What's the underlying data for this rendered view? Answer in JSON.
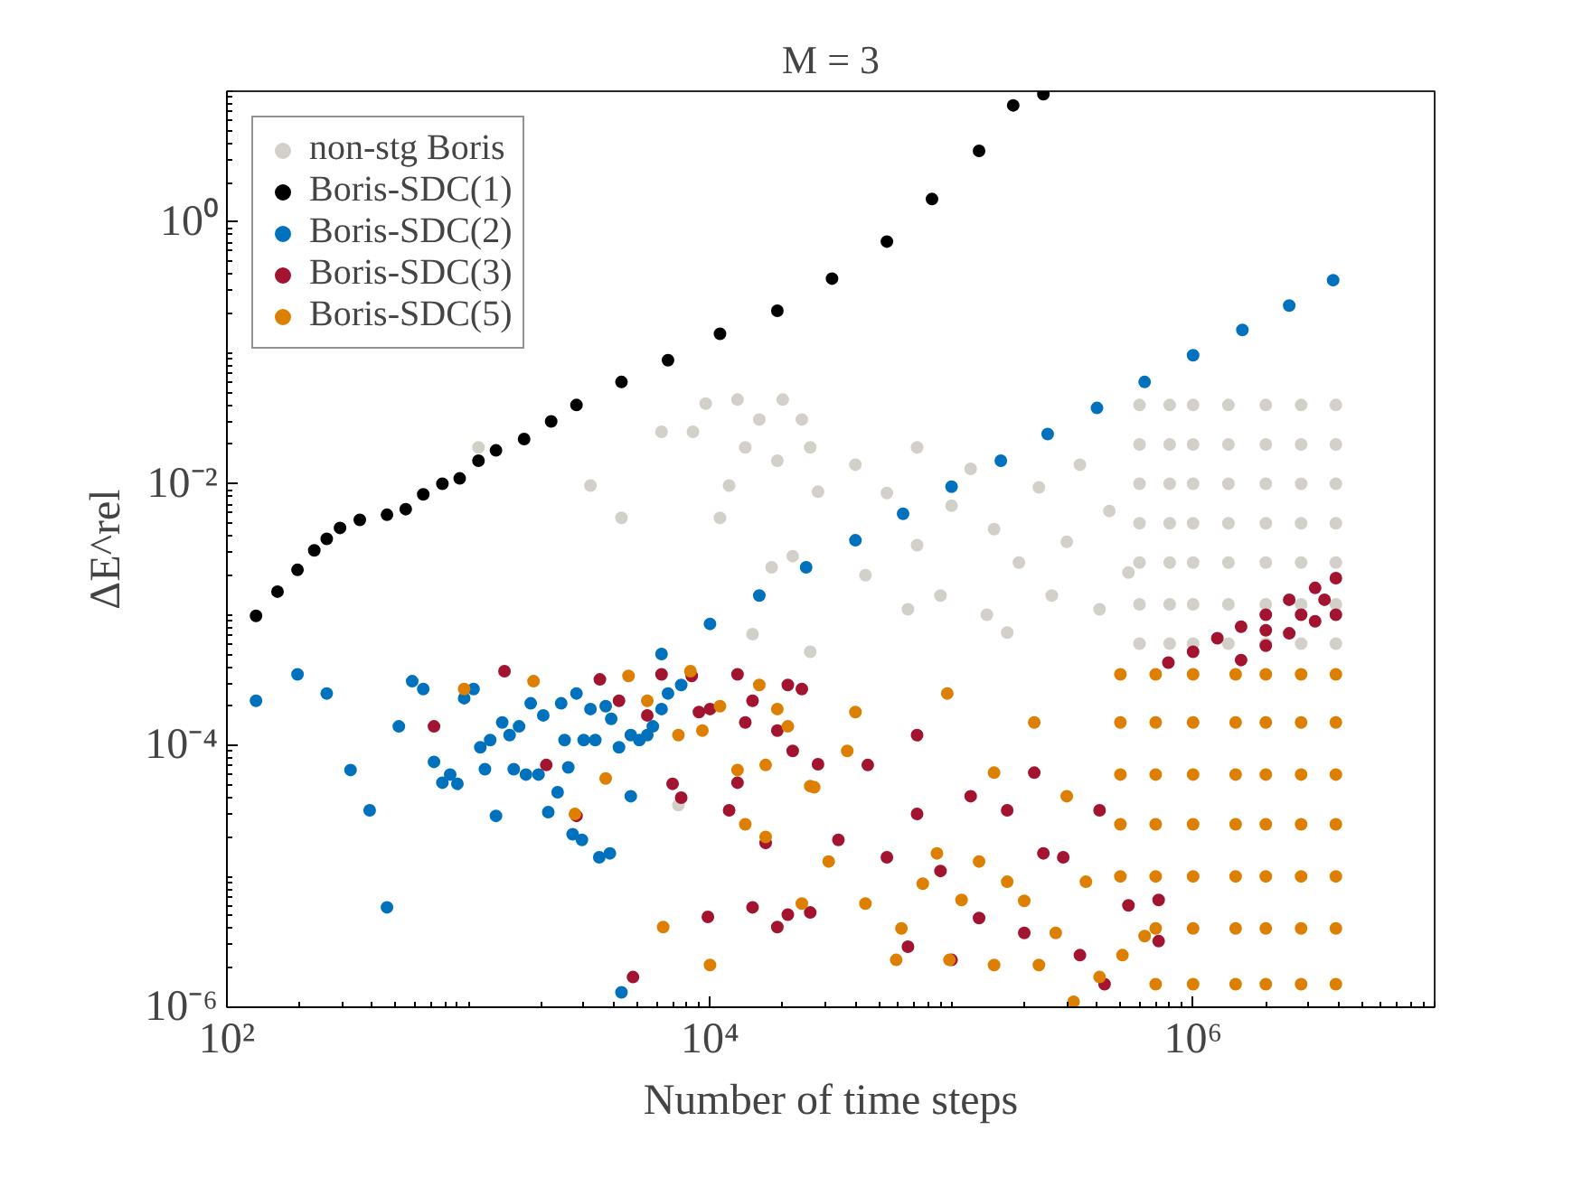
{
  "chart_data": {
    "type": "scatter",
    "title": "M = 3",
    "xlabel": "Number of time steps",
    "ylabel": "ΔE^rel",
    "log": "xy",
    "grid": false,
    "legend": "top left",
    "marker": "circle",
    "xlim": [
      100,
      10000000
    ],
    "xticks": [
      {
        "value": 100,
        "label": "10²"
      },
      {
        "value": 10000,
        "label": "10⁴"
      },
      {
        "value": 1000000,
        "label": "10⁶"
      }
    ],
    "ylim": [
      1e-06,
      10
    ],
    "yticks": [
      {
        "value": 1e-06,
        "label": "10⁻⁶"
      },
      {
        "value": 0.0001,
        "label": "10⁻⁴"
      },
      {
        "value": 0.01,
        "label": "10⁻²"
      },
      {
        "value": 1,
        "label": "10⁰"
      }
    ],
    "series": [
      {
        "name": "non-stg Boris",
        "color": "#d3cfc9",
        "x": [
          1100,
          3200,
          4300,
          6300,
          8500,
          9600,
          11000,
          12000,
          13000,
          14000,
          16000,
          18000,
          19000,
          20000,
          22000,
          24000,
          15000,
          26000,
          7400,
          26000,
          28000,
          40000,
          44000,
          54000,
          66000,
          72000,
          72000,
          90000,
          100000,
          120000,
          140000,
          150000,
          170000,
          190000,
          230000,
          260000,
          300000,
          340000,
          410000,
          450000,
          540000,
          600000,
          600000,
          600000,
          600000,
          600000,
          600000,
          600000,
          800000,
          800000,
          800000,
          800000,
          800000,
          800000,
          800000,
          1000000,
          1000000,
          1000000,
          1000000,
          1000000,
          1000000,
          1000000,
          1400000,
          1400000,
          1400000,
          1400000,
          1400000,
          1400000,
          1400000,
          2000000,
          2000000,
          2000000,
          2000000,
          2000000,
          2000000,
          2000000,
          2800000,
          2800000,
          2800000,
          2800000,
          2800000,
          2800000,
          2800000,
          3900000,
          3900000,
          3900000,
          3900000,
          3900000,
          3900000,
          3900000
        ],
        "values": [
          0.019,
          0.0097,
          0.0055,
          0.025,
          0.025,
          0.041,
          0.0055,
          0.0097,
          0.044,
          0.019,
          0.031,
          0.0023,
          0.015,
          0.044,
          0.0028,
          0.031,
          0.00071,
          0.00052,
          3.5e-05,
          0.019,
          0.0087,
          0.014,
          0.002,
          0.0085,
          0.0011,
          0.019,
          0.0034,
          0.0014,
          0.0068,
          0.013,
          0.001,
          0.0045,
          0.00073,
          0.0025,
          0.0094,
          0.0014,
          0.0036,
          0.014,
          0.0011,
          0.0062,
          0.0021,
          0.04,
          0.02,
          0.01,
          0.005,
          0.0025,
          0.0012,
          0.0006,
          0.04,
          0.02,
          0.01,
          0.005,
          0.0025,
          0.0012,
          0.0006,
          0.04,
          0.02,
          0.01,
          0.005,
          0.0025,
          0.0012,
          0.0006,
          0.04,
          0.02,
          0.01,
          0.005,
          0.0025,
          0.0012,
          0.0006,
          0.04,
          0.02,
          0.01,
          0.005,
          0.0025,
          0.0012,
          0.0006,
          0.04,
          0.02,
          0.01,
          0.005,
          0.0025,
          0.0012,
          0.0006,
          0.04,
          0.02,
          0.01,
          0.005,
          0.0025,
          0.0012,
          0.0006
        ]
      },
      {
        "name": "Boris-SDC(1)",
        "color": "#000000",
        "x": [
          132,
          162,
          196,
          230,
          259,
          294,
          355,
          460,
          550,
          650,
          780,
          920,
          1100,
          1300,
          1700,
          2200,
          2800,
          4300,
          6700,
          11000,
          19000,
          32000,
          54000,
          83000,
          130000,
          180000,
          240000
        ],
        "values": [
          0.00098,
          0.0015,
          0.0022,
          0.0031,
          0.0038,
          0.0046,
          0.0053,
          0.0058,
          0.0064,
          0.0083,
          0.01,
          0.011,
          0.015,
          0.018,
          0.022,
          0.03,
          0.04,
          0.06,
          0.088,
          0.14,
          0.21,
          0.37,
          0.71,
          1.5,
          3.5,
          7.8,
          9.5
        ]
      },
      {
        "name": "Boris-SDC(2)",
        "color": "#0072bd",
        "x": [
          132,
          196,
          259,
          325,
          390,
          460,
          515,
          585,
          650,
          720,
          780,
          840,
          900,
          960,
          1050,
          1120,
          1170,
          1230,
          1300,
          1380,
          1480,
          1540,
          1620,
          1730,
          1810,
          1950,
          2040,
          2140,
          2340,
          2420,
          2500,
          2590,
          2700,
          2800,
          2950,
          3000,
          3200,
          3350,
          3480,
          3700,
          3850,
          3900,
          4200,
          4300,
          4700,
          4700,
          5100,
          5500,
          5800,
          6300,
          6700,
          7600,
          6300,
          10000,
          16000,
          25000,
          40000,
          63000,
          100000,
          160000,
          250000,
          400000,
          630000,
          1000000,
          1600000,
          2500000,
          3800000
        ],
        "values": [
          0.00022,
          0.00035,
          0.00025,
          6.5e-05,
          3.2e-05,
          5.8e-06,
          0.00014,
          0.00031,
          0.00027,
          7.5e-05,
          5.2e-05,
          6e-05,
          5.1e-05,
          0.00023,
          0.00027,
          9.7e-05,
          6.6e-05,
          0.00011,
          2.9e-05,
          0.00015,
          0.00012,
          6.6e-05,
          0.00014,
          6e-05,
          0.00021,
          6e-05,
          0.00017,
          3.1e-05,
          4.4e-05,
          0.00021,
          0.00011,
          6.8e-05,
          2.1e-05,
          0.00025,
          1.9e-05,
          0.00011,
          0.00019,
          0.00011,
          1.4e-05,
          0.0002,
          1.5e-05,
          0.00016,
          9.7e-05,
          1.3e-06,
          4.1e-05,
          0.00012,
          0.00011,
          0.00012,
          0.00014,
          0.00019,
          0.00025,
          0.00029,
          0.0005,
          0.00085,
          0.0014,
          0.0023,
          0.0037,
          0.0059,
          0.0095,
          0.015,
          0.024,
          0.038,
          0.06,
          0.096,
          0.15,
          0.23,
          0.36
        ]
      },
      {
        "name": "Boris-SDC(3)",
        "color": "#a2142f",
        "x": [
          1410,
          720,
          2100,
          2800,
          3500,
          4200,
          4800,
          5500,
          6300,
          7000,
          7600,
          8400,
          9000,
          9800,
          10000,
          12000,
          13000,
          13000,
          14000,
          15000,
          15000,
          17000,
          19000,
          19000,
          21000,
          21000,
          22000,
          24000,
          28000,
          34000,
          26000,
          45000,
          54000,
          66000,
          72000,
          90000,
          100000,
          120000,
          130000,
          170000,
          200000,
          240000,
          290000,
          340000,
          430000,
          540000,
          720000,
          720000,
          72000,
          220000,
          410000,
          790000,
          1000000,
          1260000,
          1580000,
          2000000,
          2500000,
          3200000,
          3900000,
          1580000,
          2000000,
          2500000,
          3200000,
          3900000,
          2000000,
          2800000,
          3500000
        ],
        "values": [
          0.00037,
          0.00014,
          7.1e-05,
          2.9e-05,
          0.00032,
          0.00022,
          1.7e-06,
          0.00017,
          0.00035,
          5.1e-05,
          4e-05,
          0.00034,
          0.00018,
          4.9e-06,
          0.00019,
          3.2e-05,
          5.2e-05,
          0.00035,
          0.00015,
          5.8e-06,
          0.00022,
          1.8e-05,
          0.00013,
          4.1e-06,
          0.00029,
          5.1e-06,
          9.1e-05,
          0.00027,
          7.2e-05,
          1.9e-05,
          5.3e-06,
          7.1e-05,
          1.4e-05,
          2.9e-06,
          3e-05,
          1.1e-05,
          2.3e-06,
          4.1e-05,
          4.8e-06,
          3.2e-05,
          3.7e-06,
          1.5e-05,
          1.4e-05,
          2.5e-06,
          1.5e-06,
          6e-06,
          6.6e-06,
          3.2e-06,
          0.00012,
          6.2e-05,
          3.2e-05,
          0.00043,
          0.00052,
          0.00066,
          0.00081,
          0.001,
          0.0013,
          0.0016,
          0.0019,
          0.00045,
          0.00058,
          0.00072,
          0.00089,
          0.001,
          0.00076,
          0.001,
          0.0013
        ]
      },
      {
        "name": "Boris-SDC(5)",
        "color": "#dd7f00",
        "x": [
          960,
          1860,
          2760,
          3700,
          4600,
          5500,
          6400,
          7400,
          8300,
          9300,
          10000,
          11000,
          13000,
          14000,
          16000,
          17000,
          17000,
          19000,
          21000,
          24000,
          26000,
          27000,
          31000,
          37000,
          44000,
          59000,
          62000,
          76000,
          87000,
          98000,
          110000,
          130000,
          150000,
          170000,
          200000,
          230000,
          270000,
          320000,
          360000,
          410000,
          510000,
          630000,
          40000,
          96000,
          150000,
          220000,
          300000,
          500000,
          500000,
          500000,
          500000,
          500000,
          700000,
          700000,
          700000,
          700000,
          700000,
          700000,
          700000,
          1000000,
          1000000,
          1000000,
          1000000,
          1000000,
          1000000,
          1000000,
          1500000,
          1500000,
          1500000,
          1500000,
          1500000,
          1500000,
          1500000,
          2000000,
          2000000,
          2000000,
          2000000,
          2000000,
          2000000,
          2000000,
          2800000,
          2800000,
          2800000,
          2800000,
          2800000,
          2800000,
          2800000,
          3900000,
          3900000,
          3900000,
          3900000,
          3900000,
          3900000,
          3900000
        ],
        "values": [
          0.00027,
          0.00031,
          3e-05,
          5.6e-05,
          0.00034,
          0.00022,
          4.1e-06,
          0.00012,
          0.00037,
          0.00013,
          2.1e-06,
          0.0002,
          6.5e-05,
          2.5e-05,
          0.00029,
          2e-05,
          7.1e-05,
          0.00019,
          0.00014,
          6.2e-06,
          4.9e-05,
          4.8e-05,
          1.3e-05,
          9.1e-05,
          6.2e-06,
          2.3e-06,
          4e-06,
          8.8e-06,
          1.5e-05,
          2.3e-06,
          6.6e-06,
          1.3e-05,
          2.1e-06,
          9.1e-06,
          6.5e-06,
          2.1e-06,
          3.7e-06,
          1.1e-06,
          9.1e-06,
          1.7e-06,
          2.5e-06,
          3.5e-06,
          0.00018,
          0.00025,
          6.2e-05,
          0.00015,
          4.1e-05,
          0.00035,
          0.00015,
          6e-05,
          2.5e-05,
          1e-05,
          0.00035,
          0.00015,
          6e-05,
          2.5e-05,
          1e-05,
          4e-06,
          1.5e-06,
          0.00035,
          0.00015,
          6e-05,
          2.5e-05,
          1e-05,
          4e-06,
          1.5e-06,
          0.00035,
          0.00015,
          6e-05,
          2.5e-05,
          1e-05,
          4e-06,
          1.5e-06,
          0.00035,
          0.00015,
          6e-05,
          2.5e-05,
          1e-05,
          4e-06,
          1.5e-06,
          0.00035,
          0.00015,
          6e-05,
          2.5e-05,
          1e-05,
          4e-06,
          1.5e-06,
          0.00035,
          0.00015,
          6e-05,
          2.5e-05,
          1e-05,
          4e-06,
          1.5e-06
        ]
      }
    ]
  }
}
